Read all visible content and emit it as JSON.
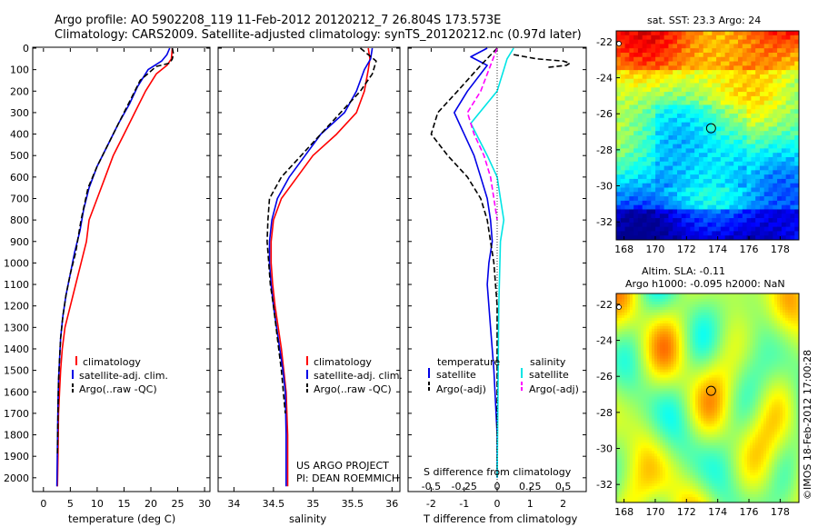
{
  "header": {
    "title_line1": "Argo profile: AO 5902208_119 11-Feb-2012 20120212_7 26.804S 173.573E",
    "title_line2": "Climatology: CARS2009. Satellite-adjusted climatology: synTS_20120212.nc (0.97d later)"
  },
  "colors": {
    "climatology": "#ff0000",
    "satellite": "#0000e6",
    "argo": "#000000",
    "sal_satellite": "#00e5e5",
    "sal_argo": "#ff00ff"
  },
  "panels": {
    "temperature": {
      "xlabel": "temperature (deg C)",
      "xticks": [
        "0",
        "5",
        "10",
        "15",
        "20",
        "25",
        "30"
      ],
      "legend": [
        "climatology",
        "satellite-adj. clim.",
        "Argo(..raw -QC)"
      ]
    },
    "salinity": {
      "xlabel": "salinity",
      "xticks": [
        "34",
        "34.5",
        "35",
        "35.5",
        "36"
      ],
      "legend": [
        "climatology",
        "satellite-adj. clim.",
        "Argo(..raw -QC)"
      ],
      "note_line1": "US ARGO PROJECT",
      "note_line2": "PI: DEAN ROEMMICH"
    },
    "difference": {
      "xlabel": "T difference from climatology",
      "xlabel_top": "S difference from climatology",
      "xticks_T": [
        "-2",
        "-1",
        "0",
        "1",
        "2"
      ],
      "xticks_S": [
        "-0.5",
        "-0.25",
        "0",
        "0.25",
        "0.5"
      ],
      "legend_temp_title": "temperature",
      "legend_sal_title": "salinity",
      "legend_items": [
        "satellite",
        "Argo(-adj)",
        "satellite",
        "Argo(-adj)"
      ]
    },
    "depth_ticks": [
      "0",
      "100",
      "200",
      "300",
      "400",
      "500",
      "600",
      "700",
      "800",
      "900",
      "1000",
      "1100",
      "1200",
      "1300",
      "1400",
      "1500",
      "1600",
      "1700",
      "1800",
      "1900",
      "2000"
    ]
  },
  "maps": {
    "sst_title": "sat. SST: 23.3 Argo: 24",
    "sla_title_line1": "Altim. SLA: -0.11",
    "sla_title_line2": "Argo h1000: -0.095 h2000: NaN",
    "lat_ticks": [
      "-22",
      "-24",
      "-26",
      "-28",
      "-30",
      "-32"
    ],
    "lon_ticks": [
      "168",
      "170",
      "172",
      "174",
      "176",
      "178"
    ],
    "argo_position": {
      "lat": -26.804,
      "lon": 173.573
    }
  },
  "footer": {
    "imos_stamp": "©IMOS 18-Feb-2012 17:00:28"
  },
  "chart_data": [
    {
      "type": "line",
      "id": "temperature_profile",
      "xlabel": "temperature (deg C)",
      "ylabel": "",
      "xlim": [
        -2,
        31
      ],
      "ylim": [
        2060,
        0
      ],
      "series": [
        {
          "name": "climatology",
          "x": [
            24,
            23.8,
            23,
            21,
            19,
            17,
            15,
            13,
            11.5,
            10,
            8.5,
            8,
            7,
            6,
            5,
            4,
            3.5,
            3.2,
            3,
            2.8,
            2.7,
            2.6
          ],
          "y": [
            0,
            50,
            80,
            120,
            200,
            300,
            400,
            500,
            600,
            700,
            800,
            900,
            1000,
            1100,
            1200,
            1300,
            1400,
            1500,
            1600,
            1700,
            1900,
            2040
          ]
        },
        {
          "name": "satellite-adj. clim.",
          "x": [
            23.5,
            23,
            22,
            19.5,
            17.5,
            16,
            14,
            12,
            10,
            8.5,
            7.5,
            6.8,
            5.8,
            5,
            4.2,
            3.6,
            3.2,
            3,
            2.8,
            2.7,
            2.6,
            2.5
          ],
          "y": [
            0,
            30,
            60,
            100,
            180,
            260,
            350,
            450,
            550,
            650,
            750,
            850,
            950,
            1050,
            1150,
            1250,
            1350,
            1450,
            1550,
            1650,
            1850,
            2040
          ]
        },
        {
          "name": "Argo(..raw -QC)",
          "x": [
            24,
            24.2,
            24,
            23.5,
            21,
            18,
            16,
            14,
            12,
            10,
            8.3,
            7,
            6,
            5,
            4.2,
            3.6,
            3.2,
            3,
            2.8,
            2.7,
            2.6
          ],
          "y": [
            0,
            25,
            50,
            70,
            85,
            150,
            250,
            350,
            450,
            550,
            650,
            800,
            950,
            1050,
            1150,
            1250,
            1350,
            1450,
            1550,
            1700,
            1900
          ]
        }
      ]
    },
    {
      "type": "line",
      "id": "salinity_profile",
      "xlabel": "salinity",
      "ylabel": "",
      "xlim": [
        33.8,
        36.1
      ],
      "ylim": [
        2060,
        0
      ],
      "series": [
        {
          "name": "climatology",
          "x": [
            35.7,
            35.72,
            35.7,
            35.65,
            35.55,
            35.3,
            35.0,
            34.8,
            34.6,
            34.5,
            34.47,
            34.47,
            34.49,
            34.52,
            34.56,
            34.6,
            34.63,
            34.66,
            34.68,
            34.68
          ],
          "y": [
            0,
            50,
            100,
            200,
            300,
            400,
            500,
            600,
            700,
            800,
            900,
            1000,
            1100,
            1200,
            1300,
            1400,
            1500,
            1600,
            1800,
            2040
          ]
        },
        {
          "name": "satellite-adj. clim.",
          "x": [
            35.75,
            35.73,
            35.65,
            35.55,
            35.4,
            35.1,
            34.9,
            34.7,
            34.55,
            34.48,
            34.45,
            34.45,
            34.47,
            34.5,
            34.54,
            34.58,
            34.62,
            34.65,
            34.66,
            34.66
          ],
          "y": [
            0,
            50,
            100,
            200,
            300,
            400,
            500,
            600,
            700,
            800,
            900,
            1000,
            1100,
            1200,
            1300,
            1400,
            1500,
            1600,
            1800,
            2040
          ]
        },
        {
          "name": "Argo(..raw -QC)",
          "x": [
            35.6,
            35.7,
            35.8,
            35.75,
            35.6,
            35.4,
            35.2,
            35.0,
            34.8,
            34.6,
            34.45,
            34.43,
            34.42,
            34.44,
            34.46,
            34.5,
            34.55,
            34.6,
            34.65
          ],
          "y": [
            0,
            30,
            60,
            120,
            200,
            280,
            360,
            440,
            520,
            600,
            700,
            800,
            900,
            1000,
            1100,
            1200,
            1350,
            1500,
            1700
          ]
        }
      ]
    },
    {
      "type": "line",
      "id": "difference_profile",
      "xlabel": "T difference from climatology",
      "ylabel": "",
      "xlim": [
        -2.7,
        2.7
      ],
      "ylim": [
        2060,
        0
      ],
      "series": [
        {
          "name": "temperature satellite",
          "x": [
            -0.3,
            -0.8,
            -0.3,
            -0.9,
            -1.3,
            -1.0,
            -0.7,
            -0.5,
            -0.3,
            -0.2,
            -0.15,
            -0.25,
            -0.3,
            -0.2,
            -0.1,
            0,
            0
          ],
          "y": [
            0,
            40,
            80,
            200,
            300,
            400,
            500,
            600,
            700,
            800,
            900,
            1000,
            1100,
            1300,
            1500,
            1800,
            2000
          ]
        },
        {
          "name": "temperature Argo(-adj)",
          "x": [
            0,
            -0.5,
            -1.2,
            -1.8,
            -2.0,
            -1.5,
            -0.9,
            -0.5,
            -0.3,
            -0.2,
            -0.1,
            0,
            0
          ],
          "y": [
            0,
            80,
            200,
            300,
            400,
            500,
            600,
            700,
            800,
            900,
            1000,
            1200,
            2000
          ]
        },
        {
          "name": "salinity satellite",
          "x": [
            0.5,
            0.3,
            0.2,
            0.0,
            -0.8,
            -0.3,
            0,
            0.1,
            0.2,
            0.1,
            0.05,
            0
          ],
          "y": [
            0,
            50,
            100,
            200,
            350,
            500,
            600,
            700,
            800,
            900,
            1200,
            2000
          ]
        },
        {
          "name": "salinity Argo(-adj)",
          "x": [
            0,
            -0.2,
            -0.5,
            -0.9,
            -0.7,
            -0.4,
            -0.2,
            -0.1,
            0
          ],
          "y": [
            0,
            80,
            200,
            300,
            400,
            500,
            600,
            700,
            800
          ]
        },
        {
          "name": "near-surface Argo difference",
          "x": [
            0.5,
            1.2,
            2.0,
            2.2,
            2.1,
            1.5
          ],
          "y": [
            30,
            50,
            60,
            70,
            80,
            90
          ]
        }
      ]
    },
    {
      "type": "heatmap",
      "id": "sst_map",
      "title": "sat. SST: 23.3 Argo: 24",
      "xlim": [
        167.5,
        179.2
      ],
      "ylim": [
        -33.0,
        -21.4
      ]
    },
    {
      "type": "heatmap",
      "id": "sla_map",
      "title": "Altim. SLA: -0.11",
      "xlim": [
        167.5,
        179.2
      ],
      "ylim": [
        -33.0,
        -21.4
      ]
    }
  ]
}
